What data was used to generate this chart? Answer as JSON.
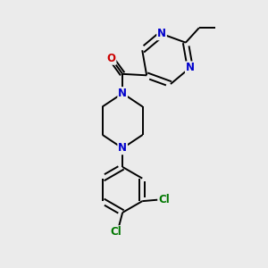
{
  "background_color": "#ebebeb",
  "bond_color": "#000000",
  "atom_colors": {
    "N": "#0000cc",
    "O": "#cc0000",
    "Cl": "#007700",
    "C": "#000000"
  },
  "font_size_atom": 8.5,
  "bond_lw": 1.4,
  "fig_width": 3.0,
  "fig_height": 3.0,
  "dpi": 100,
  "xlim": [
    0,
    10
  ],
  "ylim": [
    0,
    10
  ]
}
